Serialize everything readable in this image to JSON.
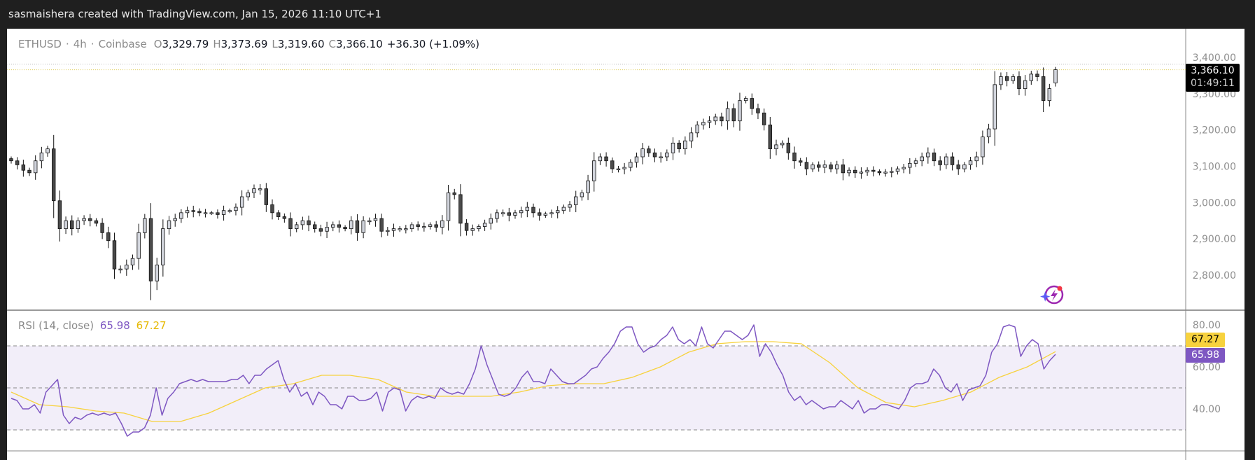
{
  "topbar": {
    "caption": "sasmaishera created with TradingView.com, Jan 15, 2026 11:10 UTC+1"
  },
  "legend": {
    "symbol": "ETHUSD",
    "sep": "·",
    "interval": "4h",
    "exchange": "Coinbase",
    "o_label": "O",
    "open": "3,329.79",
    "h_label": "H",
    "high": "3,373.69",
    "l_label": "L",
    "low": "3,319.60",
    "c_label": "C",
    "close": "3,366.10",
    "change": "+36.30 (+1.09%)"
  },
  "price_tag": {
    "price": "3,366.10",
    "countdown": "01:49:11"
  },
  "rsi_legend": {
    "title": "RSI (14, close)",
    "rsi_value": "65.98",
    "ma_value": "67.27"
  },
  "colors": {
    "up": "#d1d4dc",
    "down": "#4a4a4a",
    "border": "#111111",
    "rsi": "#7e57c2",
    "rsi_ma": "#f7d23e",
    "band": "#7e57c2"
  },
  "icons": {
    "assistant": "sparkle-lightning-icon"
  },
  "chart_data": [
    {
      "type": "candlestick",
      "title": "",
      "ylim": [
        2720,
        3440
      ],
      "y_ticks": [
        "3,400.00",
        "3,300.00",
        "3,200.00",
        "3,100.00",
        "3,000.00",
        "2,900.00",
        "2,800.00"
      ],
      "y_tick_values": [
        3400,
        3300,
        3200,
        3100,
        3000,
        2900,
        2800
      ],
      "last": {
        "open": 3329.79,
        "high": 3373.69,
        "low": 3319.6,
        "close": 3366.1
      },
      "close": [
        3115,
        3104,
        3089,
        3082,
        3115,
        3137,
        3148,
        3005,
        2928,
        2950,
        2928,
        2950,
        2956,
        2950,
        2943,
        2917,
        2895,
        2817,
        2817,
        2828,
        2846,
        2917,
        2956,
        2784,
        2828,
        2928,
        2950,
        2956,
        2972,
        2978,
        2976,
        2972,
        2972,
        2972,
        2967,
        2978,
        2978,
        2987,
        3016,
        3027,
        3038,
        3038,
        2994,
        2972,
        2961,
        2956,
        2928,
        2939,
        2950,
        2939,
        2928,
        2921,
        2932,
        2939,
        2932,
        2928,
        2950,
        2917,
        2950,
        2950,
        2956,
        2921,
        2923,
        2928,
        2928,
        2928,
        2939,
        2934,
        2934,
        2939,
        2932,
        2950,
        3027,
        3022,
        2943,
        2923,
        2928,
        2934,
        2943,
        2956,
        2972,
        2972,
        2965,
        2972,
        2978,
        2987,
        2972,
        2965,
        2969,
        2972,
        2978,
        2987,
        2994,
        3016,
        3027,
        3060,
        3115,
        3126,
        3115,
        3093,
        3093,
        3097,
        3111,
        3126,
        3148,
        3137,
        3126,
        3126,
        3137,
        3164,
        3148,
        3170,
        3192,
        3214,
        3221,
        3225,
        3236,
        3225,
        3259,
        3225,
        3281,
        3287,
        3259,
        3247,
        3214,
        3148,
        3159,
        3164,
        3137,
        3115,
        3111,
        3093,
        3104,
        3097,
        3104,
        3093,
        3104,
        3082,
        3089,
        3082,
        3084,
        3089,
        3086,
        3082,
        3084,
        3086,
        3093,
        3097,
        3108,
        3115,
        3126,
        3137,
        3115,
        3104,
        3126,
        3104,
        3093,
        3104,
        3115,
        3126,
        3181,
        3203,
        3325,
        3347,
        3336,
        3347,
        3314,
        3336,
        3354,
        3347,
        3281,
        3314,
        3366.1
      ]
    },
    {
      "type": "line",
      "title": "RSI (14, close)",
      "ylim": [
        22,
        86
      ],
      "y_ticks": [
        "80.00",
        "60.00",
        "40.00"
      ],
      "y_tick_values": [
        80,
        60,
        40
      ],
      "bands": {
        "upper": 70,
        "middle": 50,
        "lower": 30
      },
      "series": [
        {
          "name": "RSI",
          "values": [
            45,
            44,
            40,
            40,
            42,
            38,
            48,
            51,
            54,
            37,
            33,
            36,
            35,
            37,
            38,
            37,
            38,
            37,
            38,
            33,
            27,
            29,
            29,
            31,
            37,
            50,
            37,
            45,
            48,
            52,
            53,
            54,
            53,
            54,
            53,
            53,
            53,
            53,
            54,
            54,
            56,
            52,
            56,
            56,
            59,
            61,
            63,
            54,
            48,
            52,
            46,
            48,
            42,
            48,
            46,
            42,
            42,
            40,
            46,
            46,
            44,
            44,
            45,
            48,
            39,
            48,
            50,
            49,
            39,
            44,
            46,
            45,
            46,
            45,
            50,
            48,
            47,
            48,
            47,
            52,
            59,
            70,
            61,
            54,
            47,
            46,
            47,
            50,
            55,
            58,
            53,
            53,
            52,
            59,
            56,
            53,
            52,
            52,
            54,
            56,
            59,
            60,
            64,
            67,
            71,
            77,
            79,
            79,
            71,
            67,
            69,
            70,
            73,
            75,
            79,
            73,
            71,
            73,
            70,
            79,
            71,
            69,
            73,
            77,
            77,
            75,
            73,
            75,
            80,
            65,
            71,
            67,
            61,
            56,
            48,
            44,
            46,
            42,
            44,
            42,
            40,
            41,
            41,
            44,
            42,
            40,
            44,
            38,
            40,
            40,
            42,
            42,
            41,
            40,
            44,
            50,
            52,
            52,
            53,
            59,
            56,
            50,
            48,
            52,
            44,
            49,
            50,
            51,
            56,
            67,
            71,
            79,
            80,
            79,
            65,
            70,
            73,
            71,
            59,
            63,
            65.98
          ]
        },
        {
          "name": "RSI-based MA",
          "values": [
            48,
            42,
            41,
            39,
            38,
            34,
            34,
            38,
            44,
            50,
            52,
            56,
            56,
            54,
            48,
            46,
            46,
            46,
            48,
            51,
            52,
            52,
            55,
            60,
            67,
            71,
            72,
            72,
            71,
            62,
            50,
            43,
            41,
            44,
            48,
            55,
            60,
            67.27
          ]
        }
      ]
    }
  ]
}
